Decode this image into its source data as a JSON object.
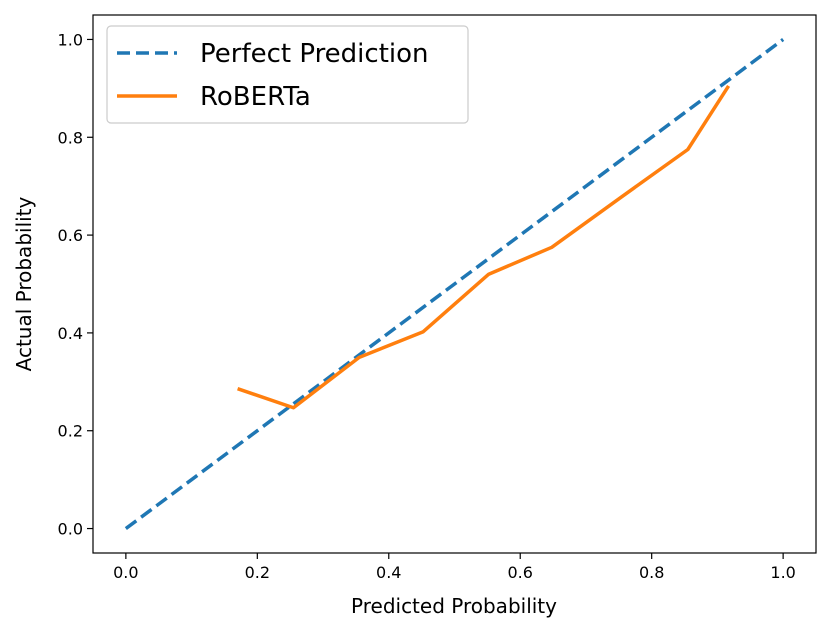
{
  "chart_data": {
    "type": "line",
    "title": "",
    "xlabel": "Predicted Probability",
    "ylabel": "Actual Probability",
    "xlim": [
      -0.05,
      1.05
    ],
    "ylim": [
      -0.05,
      1.05
    ],
    "xticks": [
      0.0,
      0.2,
      0.4,
      0.6,
      0.8,
      1.0
    ],
    "yticks": [
      0.0,
      0.2,
      0.4,
      0.6,
      0.8,
      1.0
    ],
    "xtick_labels": [
      "0.0",
      "0.2",
      "0.4",
      "0.6",
      "0.8",
      "1.0"
    ],
    "ytick_labels": [
      "0.0",
      "0.2",
      "0.4",
      "0.6",
      "0.8",
      "1.0"
    ],
    "grid": false,
    "legend_position": "upper-left",
    "series": [
      {
        "name": "Perfect Prediction",
        "style": "dashed",
        "color": "#1f77b4",
        "x": [
          0.0,
          1.0
        ],
        "y": [
          0.0,
          1.0
        ]
      },
      {
        "name": "RoBERTa",
        "style": "solid",
        "color": "#ff7f0e",
        "x": [
          0.17,
          0.255,
          0.355,
          0.452,
          0.552,
          0.648,
          0.752,
          0.855,
          0.917
        ],
        "y": [
          0.286,
          0.247,
          0.35,
          0.402,
          0.52,
          0.575,
          0.676,
          0.775,
          0.905
        ]
      }
    ]
  }
}
